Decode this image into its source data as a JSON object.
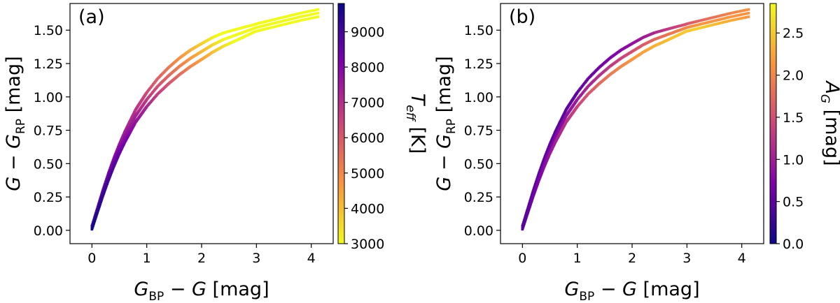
{
  "chart_data": [
    {
      "type": "scatter",
      "panel_label": "(a)",
      "xlabel": "G_BP − G [mag]",
      "ylabel": "G − G_RP [mag]",
      "xlim": [
        -0.4,
        4.4
      ],
      "ylim": [
        -0.1,
        1.7
      ],
      "xticks": [
        "0",
        "1",
        "2",
        "3",
        "4"
      ],
      "yticks": [
        "0.00",
        "0.25",
        "0.50",
        "0.75",
        "1.00",
        "1.25",
        "1.50"
      ],
      "x": [
        0.0,
        0.1,
        0.2,
        0.3,
        0.4,
        0.5,
        0.6,
        0.7,
        0.8,
        0.9,
        1.0,
        1.2,
        1.4,
        1.6,
        1.8,
        2.0,
        2.2,
        2.4,
        2.6,
        2.8,
        3.0,
        3.2,
        3.5,
        3.8,
        4.15
      ],
      "y": [
        0.02,
        0.15,
        0.28,
        0.4,
        0.51,
        0.61,
        0.7,
        0.78,
        0.86,
        0.92,
        0.98,
        1.08,
        1.16,
        1.23,
        1.29,
        1.34,
        1.39,
        1.43,
        1.46,
        1.49,
        1.52,
        1.54,
        1.57,
        1.6,
        1.63
      ],
      "colorbar": {
        "label": "T_eff [K]",
        "range": [
          3000,
          9800
        ],
        "ticks": [
          "3000",
          "4000",
          "5000",
          "6000",
          "7000",
          "8000",
          "9000"
        ],
        "orientation": "low value at bottom (yellow), high value at top (dark purple)",
        "colormap": "plasma_r"
      }
    },
    {
      "type": "scatter",
      "panel_label": "(b)",
      "xlabel": "G_BP − G [mag]",
      "ylabel": "G − G_RP [mag]",
      "xlim": [
        -0.4,
        4.4
      ],
      "ylim": [
        -0.1,
        1.7
      ],
      "xticks": [
        "0",
        "1",
        "2",
        "3",
        "4"
      ],
      "yticks": [
        "0.00",
        "0.25",
        "0.50",
        "0.75",
        "1.00",
        "1.25",
        "1.50"
      ],
      "x": [
        0.0,
        0.1,
        0.2,
        0.3,
        0.4,
        0.5,
        0.6,
        0.7,
        0.8,
        0.9,
        1.0,
        1.2,
        1.4,
        1.6,
        1.8,
        2.0,
        2.2,
        2.4,
        2.6,
        2.8,
        3.0,
        3.2,
        3.5,
        3.8,
        4.15
      ],
      "y": [
        0.02,
        0.15,
        0.28,
        0.4,
        0.51,
        0.61,
        0.7,
        0.78,
        0.86,
        0.92,
        0.98,
        1.08,
        1.16,
        1.23,
        1.29,
        1.34,
        1.39,
        1.43,
        1.46,
        1.49,
        1.52,
        1.54,
        1.57,
        1.6,
        1.63
      ],
      "colorbar": {
        "label": "A_G [mag]",
        "range": [
          0.0,
          2.85
        ],
        "ticks": [
          "0.0",
          "0.5",
          "1.0",
          "1.5",
          "2.0",
          "2.5"
        ],
        "orientation": "low value at bottom (dark purple), high value at top (yellow)",
        "colormap": "plasma"
      }
    }
  ]
}
